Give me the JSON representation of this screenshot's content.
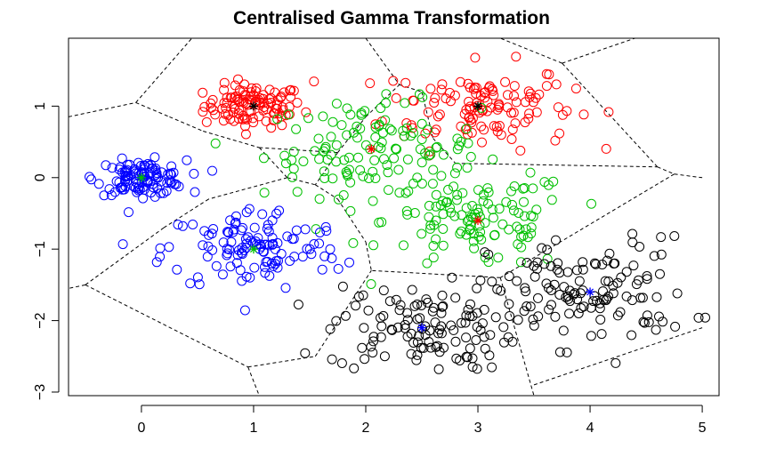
{
  "chart_data": {
    "type": "scatter",
    "title": "Centralised Gamma Transformation",
    "xlabel": "",
    "ylabel": "",
    "xlim": [
      -0.65,
      5.15
    ],
    "ylim": [
      -3.05,
      1.95
    ],
    "xticks": [
      0,
      1,
      2,
      3,
      4,
      5
    ],
    "yticks": [
      -3,
      -2,
      -1,
      0,
      1
    ],
    "xtick_labels": [
      "0",
      "1",
      "2",
      "3",
      "4",
      "5"
    ],
    "ytick_labels": [
      "−3",
      "−2",
      "−1",
      "0",
      "1"
    ],
    "grid": false,
    "legend": "none",
    "clusters": [
      {
        "color": "#ff0000",
        "center": [
          1.0,
          1.0
        ],
        "spread": [
          0.22,
          0.15
        ],
        "n": 110
      },
      {
        "color": "#ff0000",
        "center": [
          3.0,
          1.0
        ],
        "spread": [
          0.42,
          0.3
        ],
        "n": 120
      },
      {
        "color": "#00c000",
        "center": [
          2.05,
          0.4
        ],
        "spread": [
          0.48,
          0.33
        ],
        "n": 120
      },
      {
        "color": "#00c000",
        "center": [
          3.0,
          -0.6
        ],
        "spread": [
          0.42,
          0.35
        ],
        "n": 120
      },
      {
        "color": "#0000ff",
        "center": [
          0.0,
          0.0
        ],
        "spread": [
          0.2,
          0.12
        ],
        "n": 110
      },
      {
        "color": "#0000ff",
        "center": [
          1.0,
          -1.0
        ],
        "spread": [
          0.4,
          0.3
        ],
        "n": 120
      },
      {
        "color": "#000000",
        "center": [
          2.5,
          -2.1
        ],
        "spread": [
          0.42,
          0.3
        ],
        "n": 120
      },
      {
        "color": "#000000",
        "center": [
          4.0,
          -1.6
        ],
        "spread": [
          0.45,
          0.38
        ],
        "n": 120
      }
    ],
    "centroids": [
      {
        "x": 1.0,
        "y": 1.0,
        "color": "#000000"
      },
      {
        "x": 3.0,
        "y": 1.0,
        "color": "#000000"
      },
      {
        "x": 2.05,
        "y": 0.4,
        "color": "#ff0000"
      },
      {
        "x": 3.0,
        "y": -0.6,
        "color": "#ff0000"
      },
      {
        "x": 0.0,
        "y": 0.0,
        "color": "#00c000"
      },
      {
        "x": 1.0,
        "y": -1.0,
        "color": "#00c000"
      },
      {
        "x": 2.5,
        "y": -2.1,
        "color": "#0000ff"
      },
      {
        "x": 4.0,
        "y": -1.6,
        "color": "#0000ff"
      }
    ],
    "voronoi_edges": [
      [
        [
          -0.65,
          0.85
        ],
        [
          -0.05,
          1.05
        ]
      ],
      [
        [
          -0.05,
          1.05
        ],
        [
          0.45,
          1.95
        ]
      ],
      [
        [
          -0.05,
          1.05
        ],
        [
          0.25,
          0.85
        ]
      ],
      [
        [
          0.25,
          0.85
        ],
        [
          0.55,
          0.65
        ]
      ],
      [
        [
          0.55,
          0.65
        ],
        [
          1.05,
          0.42
        ]
      ],
      [
        [
          1.05,
          0.42
        ],
        [
          1.75,
          0.35
        ]
      ],
      [
        [
          1.05,
          0.42
        ],
        [
          1.3,
          0.0
        ]
      ],
      [
        [
          1.3,
          0.0
        ],
        [
          1.55,
          -0.1
        ]
      ],
      [
        [
          1.75,
          0.35
        ],
        [
          1.55,
          -0.1
        ]
      ],
      [
        [
          1.55,
          -0.1
        ],
        [
          1.75,
          -0.3
        ]
      ],
      [
        [
          1.75,
          -0.3
        ],
        [
          2.0,
          -0.9
        ]
      ],
      [
        [
          2.0,
          -0.9
        ],
        [
          2.05,
          -1.3
        ]
      ],
      [
        [
          1.3,
          0.0
        ],
        [
          0.6,
          -0.3
        ]
      ],
      [
        [
          0.6,
          -0.3
        ],
        [
          0.2,
          -0.7
        ]
      ],
      [
        [
          0.2,
          -0.7
        ],
        [
          -0.5,
          -1.5
        ]
      ],
      [
        [
          -0.5,
          -1.5
        ],
        [
          -0.65,
          -1.55
        ]
      ],
      [
        [
          -0.5,
          -1.5
        ],
        [
          0.95,
          -2.65
        ]
      ],
      [
        [
          0.95,
          -2.65
        ],
        [
          1.05,
          -3.05
        ]
      ],
      [
        [
          0.95,
          -2.65
        ],
        [
          1.55,
          -2.5
        ]
      ],
      [
        [
          1.55,
          -2.5
        ],
        [
          2.05,
          -1.3
        ]
      ],
      [
        [
          1.75,
          0.35
        ],
        [
          2.0,
          0.85
        ]
      ],
      [
        [
          2.0,
          0.85
        ],
        [
          2.3,
          1.3
        ]
      ],
      [
        [
          2.0,
          1.95
        ],
        [
          2.3,
          1.3
        ]
      ],
      [
        [
          2.3,
          1.3
        ],
        [
          2.5,
          1.2
        ]
      ],
      [
        [
          2.5,
          1.2
        ],
        [
          2.6,
          0.55
        ]
      ],
      [
        [
          2.6,
          0.55
        ],
        [
          2.8,
          0.2
        ]
      ],
      [
        [
          2.8,
          0.2
        ],
        [
          4.6,
          0.15
        ]
      ],
      [
        [
          4.6,
          0.15
        ],
        [
          4.75,
          0.05
        ]
      ],
      [
        [
          4.75,
          0.05
        ],
        [
          5.0,
          0.0
        ]
      ],
      [
        [
          4.6,
          0.15
        ],
        [
          3.75,
          1.6
        ]
      ],
      [
        [
          3.75,
          1.6
        ],
        [
          3.2,
          1.95
        ]
      ],
      [
        [
          3.75,
          1.6
        ],
        [
          4.4,
          1.95
        ]
      ],
      [
        [
          4.75,
          0.05
        ],
        [
          3.2,
          -1.4
        ]
      ],
      [
        [
          3.2,
          -1.4
        ],
        [
          2.05,
          -1.3
        ]
      ],
      [
        [
          3.2,
          -1.4
        ],
        [
          3.5,
          -3.05
        ]
      ],
      [
        [
          3.5,
          -2.9
        ],
        [
          5.0,
          -2.1
        ]
      ]
    ]
  }
}
